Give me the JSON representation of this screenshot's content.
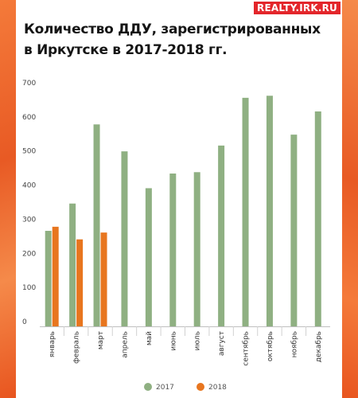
{
  "brand": {
    "logo": "REALTY.IRK.RU"
  },
  "chart_data": {
    "type": "bar",
    "title": "Количество ДДУ, зарегистрированных в Иркутске в 2017-2018 гг.",
    "title_lines": [
      "Количество ДДУ, зарегистрированных",
      "в Иркутске в 2017-2018 гг."
    ],
    "categories": [
      "январь",
      "февраль",
      "март",
      "апрель",
      "май",
      "июнь",
      "июль",
      "август",
      "сентябрь",
      "октябрь",
      "ноябрь",
      "декабрь"
    ],
    "series": [
      {
        "name": "2017",
        "color": "#8fb082",
        "values": [
          280,
          360,
          592,
          513,
          405,
          448,
          452,
          530,
          670,
          676,
          562,
          630
        ]
      },
      {
        "name": "2018",
        "color": "#e8761f",
        "values": [
          292,
          255,
          275,
          null,
          null,
          null,
          null,
          null,
          null,
          null,
          null,
          null
        ]
      }
    ],
    "yticks": [
      0,
      100,
      200,
      300,
      400,
      500,
      600,
      700
    ],
    "ylim": [
      0,
      700
    ],
    "xlabel": "",
    "ylabel": "",
    "grid": false,
    "legend": "bottom"
  }
}
